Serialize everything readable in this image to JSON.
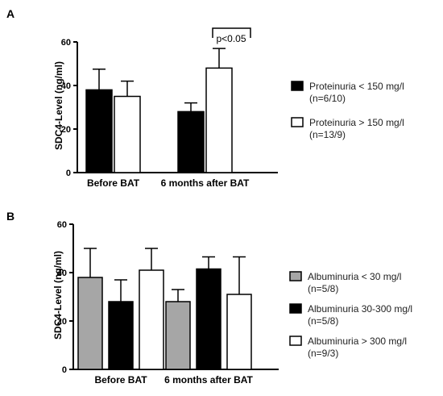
{
  "chart_data": [
    {
      "panel": "A",
      "type": "bar",
      "ylabel": "SDC4-Level (ng/ml)",
      "ylim": [
        0,
        60
      ],
      "yticks": [
        0,
        20,
        40,
        60
      ],
      "categories": [
        "Before BAT",
        "6 months after BAT"
      ],
      "series": [
        {
          "name": "Proteinuria < 150 mg/l",
          "name2": "(n=6/10)",
          "color": "#000000",
          "values": [
            38,
            28
          ],
          "errors": [
            9.5,
            4
          ]
        },
        {
          "name": "Proteinuria > 150 mg/l",
          "name2": "(n=13/9)",
          "color": "#ffffff",
          "values": [
            35,
            48
          ],
          "errors": [
            7,
            9
          ]
        }
      ],
      "annotation": "p<0.05",
      "legend": "right"
    },
    {
      "panel": "B",
      "type": "bar",
      "ylabel": "SDC4-Level (ng/ml)",
      "ylim": [
        0,
        60
      ],
      "yticks": [
        0,
        20,
        40,
        60
      ],
      "categories": [
        "Before BAT",
        "6 months after BAT"
      ],
      "series": [
        {
          "name": "Albuminuria < 30 mg/l",
          "name2": "(n=5/8)",
          "color": "#a6a6a6",
          "values": [
            38,
            28
          ],
          "errors": [
            12,
            5
          ]
        },
        {
          "name": "Albuminuria 30-300 mg/l",
          "name2": "(n=5/8)",
          "color": "#000000",
          "values": [
            28,
            41.5
          ],
          "errors": [
            9,
            5
          ]
        },
        {
          "name": "Albuminuria > 300 mg/l",
          "name2": "(n=9/3)",
          "color": "#ffffff",
          "values": [
            41,
            31
          ],
          "errors": [
            9,
            15.5
          ]
        }
      ],
      "legend": "right"
    }
  ]
}
